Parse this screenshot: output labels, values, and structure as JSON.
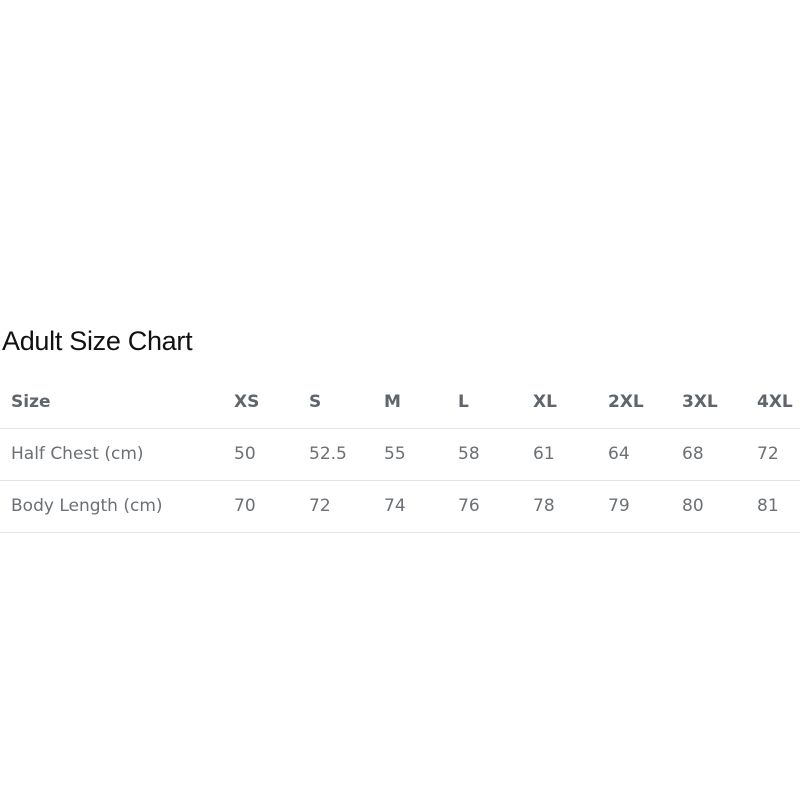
{
  "title": "Adult Size Chart",
  "table": {
    "headers": [
      "Size",
      "XS",
      "S",
      "M",
      "L",
      "XL",
      "2XL",
      "3XL",
      "4XL"
    ],
    "rows": [
      [
        "Half Chest (cm)",
        "50",
        "52.5",
        "55",
        "58",
        "61",
        "64",
        "68",
        "72"
      ],
      [
        "Body Length (cm)",
        "70",
        "72",
        "74",
        "76",
        "78",
        "79",
        "80",
        "81"
      ]
    ]
  }
}
